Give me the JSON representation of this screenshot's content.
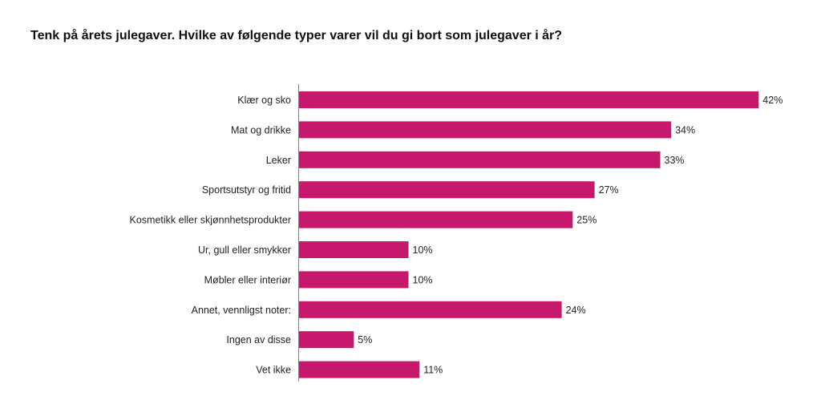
{
  "chart_data": {
    "type": "bar",
    "orientation": "horizontal",
    "title": "Tenk på årets julegaver. Hvilke av følgende typer varer vil du gi bort som julegaver i år?",
    "categories": [
      "Klær og sko",
      "Mat og drikke",
      "Leker",
      "Sportsutstyr og fritid",
      "Kosmetikk eller skjønnhetsprodukter",
      "Ur, gull eller smykker",
      "Møbler eller interiør",
      "Annet, vennligst noter:",
      "Ingen av disse",
      "Vet ikke"
    ],
    "values": [
      42,
      34,
      33,
      27,
      25,
      10,
      10,
      24,
      5,
      11
    ],
    "value_labels": [
      "42%",
      "34%",
      "33%",
      "27%",
      "25%",
      "10%",
      "10%",
      "24%",
      "5%",
      "11%"
    ],
    "unit": "%",
    "xlim": [
      0,
      43
    ],
    "grid": false,
    "legend": "none",
    "bar_color": "#c8186c",
    "axis_color": "#7f7f7f"
  }
}
